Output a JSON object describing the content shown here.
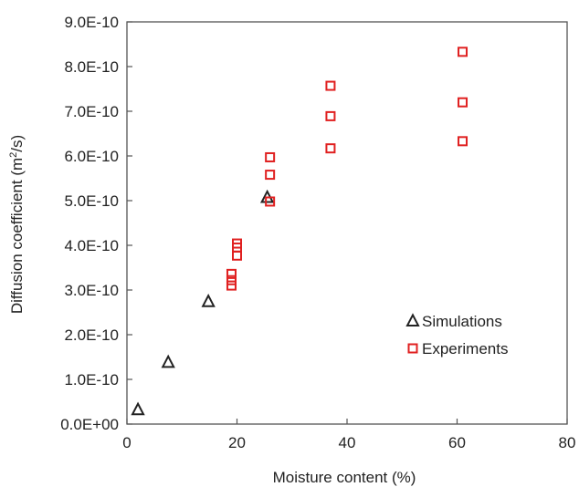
{
  "chart_data": {
    "type": "scatter",
    "xlabel": "Moisture content (%)",
    "ylabel_main": "Diffusion coefficient (m",
    "ylabel_sup": "2",
    "ylabel_end": "/s)",
    "xlim": [
      0,
      80
    ],
    "ylim": [
      0,
      9e-10
    ],
    "x_ticks": [
      {
        "value": 0,
        "label": "0"
      },
      {
        "value": 20,
        "label": "20"
      },
      {
        "value": 40,
        "label": "40"
      },
      {
        "value": 60,
        "label": "60"
      },
      {
        "value": 80,
        "label": "80"
      }
    ],
    "y_ticks": [
      {
        "value": 0,
        "label": "0.0E+00"
      },
      {
        "value": 1e-10,
        "label": "1.0E-10"
      },
      {
        "value": 2e-10,
        "label": "2.0E-10"
      },
      {
        "value": 3e-10,
        "label": "3.0E-10"
      },
      {
        "value": 4e-10,
        "label": "4.0E-10"
      },
      {
        "value": 5e-10,
        "label": "5.0E-10"
      },
      {
        "value": 6e-10,
        "label": "6.0E-10"
      },
      {
        "value": 7e-10,
        "label": "7.0E-10"
      },
      {
        "value": 8e-10,
        "label": "8.0E-10"
      },
      {
        "value": 9e-10,
        "label": "9.0E-10"
      }
    ],
    "grid": false,
    "legend_position": "bottom-right",
    "series": [
      {
        "name": "Simulations",
        "marker": "triangle",
        "color": "#222222",
        "points": [
          {
            "x": 2,
            "y": 3.2e-11
          },
          {
            "x": 7.5,
            "y": 1.38e-10
          },
          {
            "x": 14.8,
            "y": 2.74e-10
          },
          {
            "x": 25.5,
            "y": 5.07e-10
          }
        ]
      },
      {
        "name": "Experiments",
        "marker": "square",
        "color": "#e02020",
        "points": [
          {
            "x": 19,
            "y": 3.1e-10
          },
          {
            "x": 19,
            "y": 3.22e-10
          },
          {
            "x": 19,
            "y": 3.36e-10
          },
          {
            "x": 20,
            "y": 3.77e-10
          },
          {
            "x": 20,
            "y": 3.95e-10
          },
          {
            "x": 20,
            "y": 4.04e-10
          },
          {
            "x": 26,
            "y": 4.98e-10
          },
          {
            "x": 26,
            "y": 5.58e-10
          },
          {
            "x": 26,
            "y": 5.97e-10
          },
          {
            "x": 37,
            "y": 6.17e-10
          },
          {
            "x": 37,
            "y": 6.89e-10
          },
          {
            "x": 37,
            "y": 7.57e-10
          },
          {
            "x": 61,
            "y": 6.33e-10
          },
          {
            "x": 61,
            "y": 7.2e-10
          },
          {
            "x": 61,
            "y": 8.33e-10
          }
        ]
      }
    ]
  }
}
